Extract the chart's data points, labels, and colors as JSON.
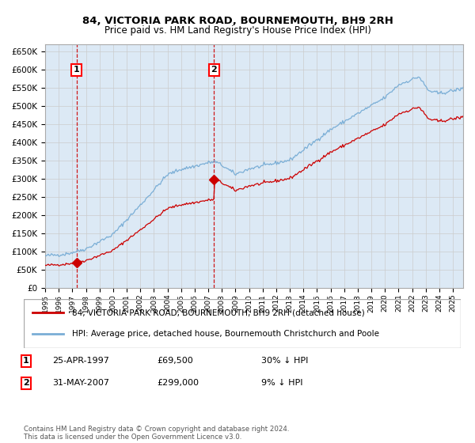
{
  "title1": "84, VICTORIA PARK ROAD, BOURNEMOUTH, BH9 2RH",
  "title2": "Price paid vs. HM Land Registry's House Price Index (HPI)",
  "legend_line1": "84, VICTORIA PARK ROAD, BOURNEMOUTH, BH9 2RH (detached house)",
  "legend_line2": "HPI: Average price, detached house, Bournemouth Christchurch and Poole",
  "annotation1_date": "25-APR-1997",
  "annotation1_price": "£69,500",
  "annotation1_hpi": "30% ↓ HPI",
  "annotation2_date": "31-MAY-2007",
  "annotation2_price": "£299,000",
  "annotation2_hpi": "9% ↓ HPI",
  "footer": "Contains HM Land Registry data © Crown copyright and database right 2024.\nThis data is licensed under the Open Government Licence v3.0.",
  "red_color": "#cc0000",
  "blue_color": "#7aaed6",
  "bg_color": "#dce9f5",
  "grid_color": "#cccccc",
  "sale1_year": 1997.32,
  "sale1_price": 69500,
  "sale2_year": 2007.42,
  "sale2_price": 299000,
  "ylim": [
    0,
    670000
  ],
  "xlim_start": 1995.0,
  "xlim_end": 2025.75
}
